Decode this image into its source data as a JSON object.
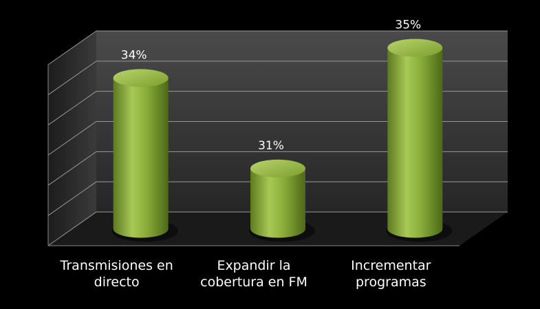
{
  "chart_data": {
    "type": "bar",
    "categories": [
      "Transmisiones en directo",
      "Expandir la cobertura en FM",
      "Incrementar programas"
    ],
    "values": [
      34,
      31,
      35
    ],
    "value_labels": [
      "34%",
      "31%",
      "35%"
    ],
    "color": "#8aad3a",
    "ylim": [
      29,
      35
    ],
    "yticks": [
      29,
      30,
      31,
      32,
      33,
      34,
      35
    ],
    "grid": true
  }
}
